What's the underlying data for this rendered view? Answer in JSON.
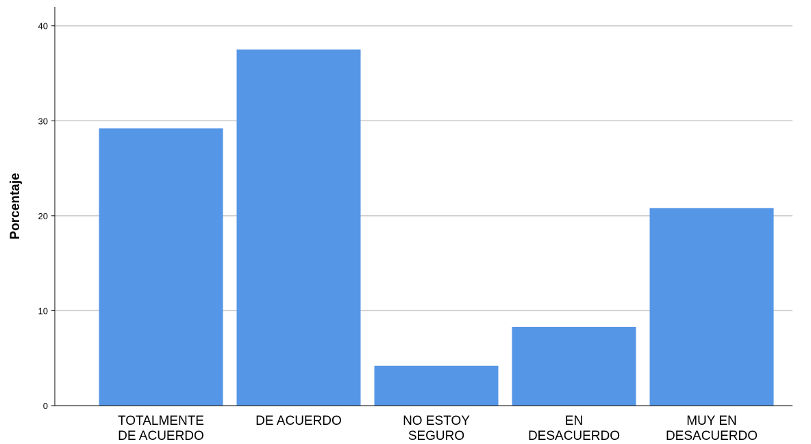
{
  "chart_data": {
    "type": "bar",
    "categories": [
      [
        "TOTALMENTE",
        "DE ACUERDO"
      ],
      [
        "DE ACUERDO"
      ],
      [
        "NO ESTOY",
        "SEGURO"
      ],
      [
        "EN",
        "DESACUERDO"
      ],
      [
        "MUY EN",
        "DESACUERDO"
      ]
    ],
    "values": [
      29.2,
      37.5,
      4.2,
      8.3,
      20.8
    ],
    "ylabel": "Porcentaje",
    "xlabel": "",
    "ylim": [
      0,
      42
    ],
    "yticks": [
      0,
      10,
      20,
      30,
      40
    ],
    "grid": true,
    "colors": {
      "bar": "#5596e6",
      "grid": "#c8c8c8",
      "axis": "#000000"
    }
  }
}
